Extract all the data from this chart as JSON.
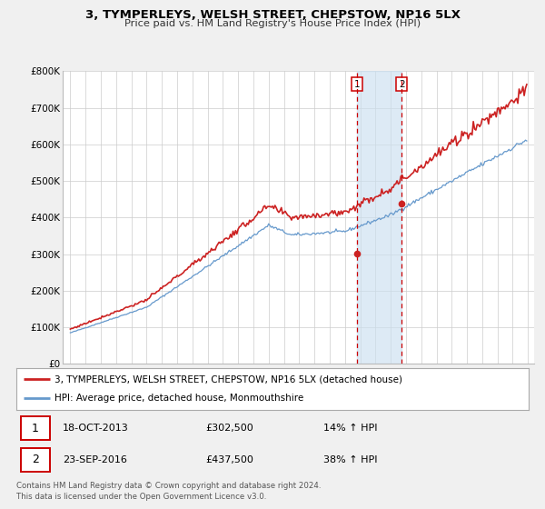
{
  "title": "3, TYMPERLEYS, WELSH STREET, CHEPSTOW, NP16 5LX",
  "subtitle": "Price paid vs. HM Land Registry's House Price Index (HPI)",
  "legend_line1": "3, TYMPERLEYS, WELSH STREET, CHEPSTOW, NP16 5LX (detached house)",
  "legend_line2": "HPI: Average price, detached house, Monmouthshire",
  "footnote1": "Contains HM Land Registry data © Crown copyright and database right 2024.",
  "footnote2": "This data is licensed under the Open Government Licence v3.0.",
  "transaction1_date": "18-OCT-2013",
  "transaction1_price": "£302,500",
  "transaction1_hpi": "14% ↑ HPI",
  "transaction2_date": "23-SEP-2016",
  "transaction2_price": "£437,500",
  "transaction2_hpi": "38% ↑ HPI",
  "sale1_date_num": 2013.8,
  "sale1_price": 302500,
  "sale2_date_num": 2016.73,
  "sale2_price": 437500,
  "hpi_color": "#6699cc",
  "property_color": "#cc2222",
  "sale_marker_color": "#cc2222",
  "vline_color": "#cc0000",
  "shade_color": "#cce0f0",
  "ylim_max": 800000,
  "ylabel_ticks": [
    0,
    100000,
    200000,
    300000,
    400000,
    500000,
    600000,
    700000,
    800000
  ],
  "ylabel_labels": [
    "£0",
    "£100K",
    "£200K",
    "£300K",
    "£400K",
    "£500K",
    "£600K",
    "£700K",
    "£800K"
  ],
  "bg_color": "#f0f0f0",
  "plot_bg_color": "#ffffff",
  "grid_color": "#cccccc"
}
